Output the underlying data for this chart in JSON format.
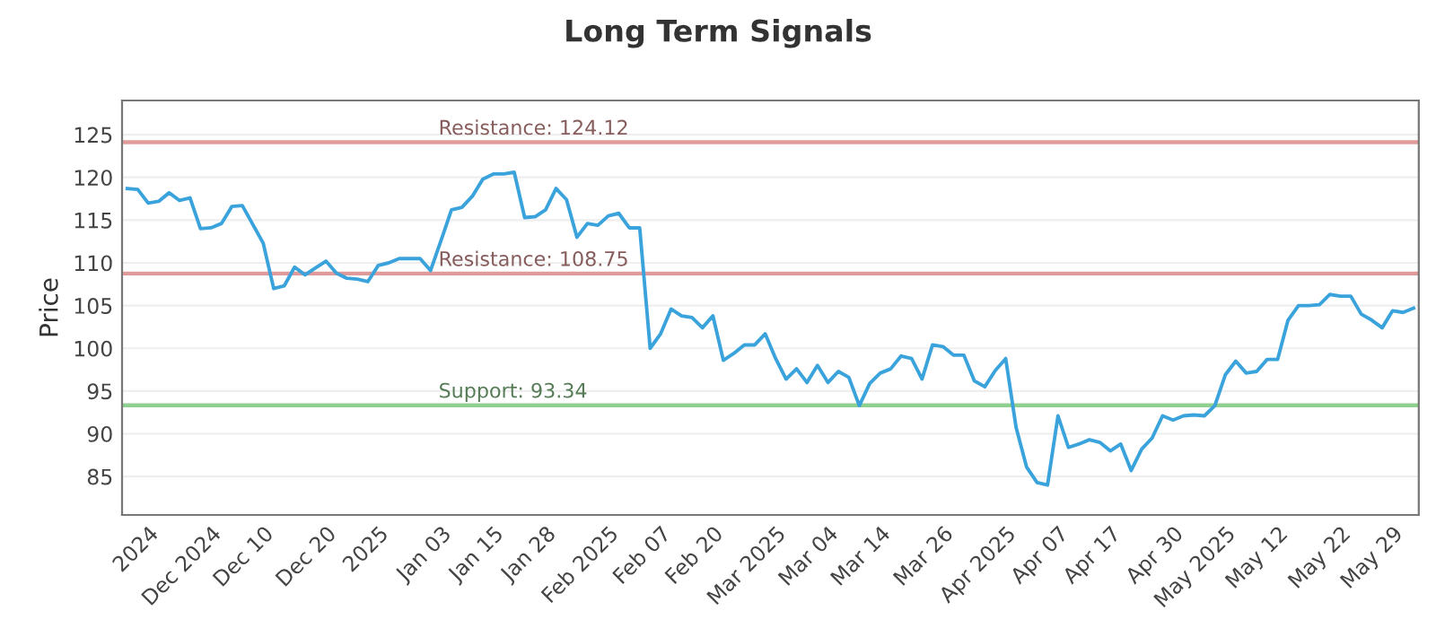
{
  "chart_data": {
    "type": "line",
    "title": "Long Term Signals",
    "ylabel": "Price",
    "categories": [
      null,
      null,
      "2024",
      null,
      null,
      null,
      null,
      null,
      "Dec 2024",
      null,
      null,
      null,
      null,
      "Dec 10",
      null,
      null,
      null,
      null,
      null,
      "Dec 20",
      null,
      null,
      null,
      null,
      "2025",
      null,
      null,
      null,
      null,
      null,
      "Jan 03",
      null,
      null,
      null,
      null,
      "Jan 15",
      null,
      null,
      null,
      null,
      "Jan 28",
      null,
      null,
      null,
      null,
      null,
      "Feb 2025",
      null,
      null,
      null,
      null,
      "Feb 07",
      null,
      null,
      null,
      null,
      "Feb 20",
      null,
      null,
      null,
      null,
      null,
      "Mar 2025",
      null,
      null,
      null,
      null,
      "Mar 04",
      null,
      null,
      null,
      null,
      "Mar 14",
      null,
      null,
      null,
      null,
      null,
      "Mar 26",
      null,
      null,
      null,
      null,
      null,
      "Apr 2025",
      null,
      null,
      null,
      null,
      "Apr 07",
      null,
      null,
      null,
      null,
      "Apr 17",
      null,
      null,
      null,
      null,
      null,
      "Apr 30",
      null,
      null,
      null,
      null,
      "May 2025",
      null,
      null,
      null,
      null,
      "May 12",
      null,
      null,
      null,
      null,
      null,
      "May 22",
      null,
      null,
      null,
      null,
      "May 29",
      null,
      null
    ],
    "series": [
      {
        "color": "#3ba3dc",
        "values": [
          118.7,
          118.6,
          117,
          117.2,
          118.2,
          117.3,
          117.6,
          114,
          114.1,
          114.6,
          116.6,
          116.7,
          114.5,
          112.3,
          107,
          107.3,
          109.5,
          108.6,
          109.4,
          110.2,
          108.8,
          108.2,
          108.1,
          107.8,
          109.7,
          110,
          110.5,
          110.5,
          110.5,
          109.1,
          112.6,
          116.2,
          116.5,
          117.8,
          119.8,
          120.4,
          120.4,
          120.6,
          115.3,
          115.4,
          116.2,
          118.7,
          117.4,
          113,
          114.6,
          114.4,
          115.5,
          115.8,
          114.1,
          114.1,
          100,
          101.7,
          104.6,
          103.8,
          103.6,
          102.4,
          103.8,
          98.6,
          99.4,
          100.4,
          100.4,
          101.7,
          98.8,
          96.4,
          97.6,
          96,
          98,
          96,
          97.3,
          96.6,
          93.3,
          95.9,
          97.1,
          97.6,
          99.1,
          98.8,
          96.4,
          100.4,
          100.2,
          99.2,
          99.2,
          96.2,
          95.5,
          97.4,
          98.8,
          90.7,
          86.1,
          84.3,
          84,
          92.1,
          88.4,
          88.8,
          89.3,
          89,
          88,
          88.8,
          85.7,
          88.2,
          89.5,
          92.1,
          91.6,
          92.1,
          92.2,
          92.1,
          93.3,
          96.9,
          98.5,
          97.1,
          97.3,
          98.7,
          98.7,
          103.3,
          105,
          105,
          105.1,
          106.3,
          106.1,
          106.1,
          104,
          103.3,
          102.4,
          104.4,
          104.2,
          104.7
        ]
      }
    ],
    "ylim": [
      80.5,
      129
    ],
    "yticks": [
      85,
      90,
      95,
      100,
      105,
      110,
      115,
      120,
      125
    ],
    "grid": "y",
    "marker": "none",
    "line_style": "solid",
    "ref_lines": [
      {
        "axis": "y",
        "value": 124.12,
        "label": "Resistance: 124.12",
        "color": "#e09a9a"
      },
      {
        "axis": "y",
        "value": 108.75,
        "label": "Resistance: 108.75",
        "color": "#e09a9a"
      },
      {
        "axis": "y",
        "value": 93.34,
        "label": "Support: 93.34",
        "color": "#8fcf8f"
      }
    ]
  }
}
